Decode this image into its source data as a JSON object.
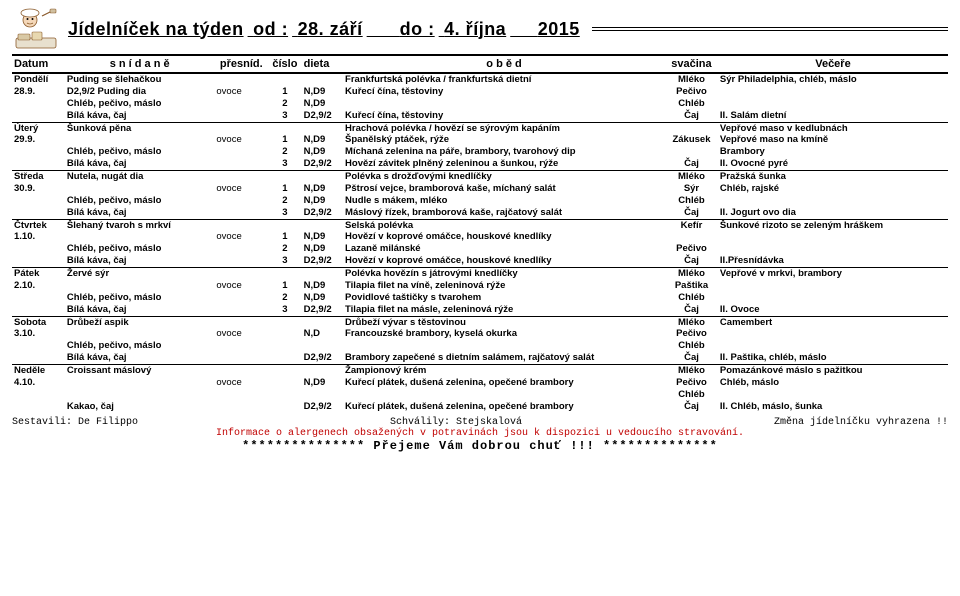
{
  "title": {
    "prefix": "Jídelníček  na  týden",
    "from_lbl": "od  :",
    "from": "28. září",
    "to_lbl": "do   :",
    "to": "4. října",
    "year": "2015"
  },
  "headers": {
    "datum": "Datum",
    "snidane": "s n í d a n ě",
    "presnid": "přesníd.",
    "cislo": "číslo",
    "dieta": "dieta",
    "obed": "o b ě d",
    "svacina": "svačina",
    "vecere": "Večeře"
  },
  "days": [
    {
      "day": "Pondělí",
      "date": "28.9.",
      "rows": [
        {
          "snid": "Puding se šlehačkou",
          "pres": "",
          "cis": "",
          "diet": "",
          "obed": "Frankfurtská polévka / frankfurtská dietní",
          "svac": "Mléko",
          "vec": "Sýr Philadelphia, chléb, máslo"
        },
        {
          "snid": "D2,9/2 Puding dia",
          "pres": "ovoce",
          "cis": "1",
          "diet": "N,D9",
          "obed": "Kuřecí čína, těstoviny",
          "svac": "Pečivo",
          "vec": ""
        },
        {
          "snid": "Chléb, pečivo, máslo",
          "pres": "",
          "cis": "2",
          "diet": "N,D9",
          "obed": "",
          "svac": "Chléb",
          "vec": ""
        },
        {
          "snid": "Bílá káva, čaj",
          "pres": "",
          "cis": "3",
          "diet": "D2,9/2",
          "obed": "Kuřecí čína, těstoviny",
          "svac": "Čaj",
          "vec": "II. Salám dietní"
        }
      ]
    },
    {
      "day": "Úterý",
      "date": "29.9.",
      "rows": [
        {
          "snid": "Šunková pěna",
          "pres": "",
          "cis": "",
          "diet": "",
          "obed": "Hrachová polévka / hovězí se sýrovým kapáním",
          "svac": "",
          "vec": "Vepřové maso v kedlubnách"
        },
        {
          "snid": "",
          "pres": "ovoce",
          "cis": "1",
          "diet": "N,D9",
          "obed": "Španělský ptáček, rýže",
          "svac": "Zákusek",
          "vec": "Vepřové maso na kmíně"
        },
        {
          "snid": "Chléb, pečivo, máslo",
          "pres": "",
          "cis": "2",
          "diet": "N,D9",
          "obed": "Míchaná zelenina na páře, brambory, tvarohový dip",
          "svac": "",
          "vec": "Brambory"
        },
        {
          "snid": "Bílá káva, čaj",
          "pres": "",
          "cis": "3",
          "diet": "D2,9/2",
          "obed": "Hovězí závitek plněný zeleninou a šunkou, rýže",
          "svac": "Čaj",
          "vec": "II. Ovocné pyré"
        }
      ]
    },
    {
      "day": "Středa",
      "date": "30.9.",
      "rows": [
        {
          "snid": "Nutela, nugát dia",
          "pres": "",
          "cis": "",
          "diet": "",
          "obed": "Polévka s drožďovými knedlíčky",
          "svac": "Mléko",
          "vec": "Pražská šunka"
        },
        {
          "snid": "",
          "pres": "ovoce",
          "cis": "1",
          "diet": "N,D9",
          "obed": "Pštrosí vejce, bramborová kaše, míchaný salát",
          "svac": "Sýr",
          "vec": "Chléb, rajské"
        },
        {
          "snid": "Chléb, pečivo, máslo",
          "pres": "",
          "cis": "2",
          "diet": "N,D9",
          "obed": "Nudle s mákem, mléko",
          "svac": "Chléb",
          "vec": ""
        },
        {
          "snid": "Bílá káva, čaj",
          "pres": "",
          "cis": "3",
          "diet": "D2,9/2",
          "obed": "Máslový řízek, bramborová kaše, rajčatový salát",
          "svac": "Čaj",
          "vec": "II. Jogurt ovo dia"
        }
      ]
    },
    {
      "day": "Čtvrtek",
      "date": "1.10.",
      "rows": [
        {
          "snid": "Šlehaný tvaroh s mrkví",
          "pres": "",
          "cis": "",
          "diet": "",
          "obed": "Selská polévka",
          "svac": "Kefír",
          "vec": "Šunkové rizoto se zeleným hráškem"
        },
        {
          "snid": "",
          "pres": "ovoce",
          "cis": "1",
          "diet": "N,D9",
          "obed": "Hovězí v koprové omáčce, houskové knedlíky",
          "svac": "",
          "vec": ""
        },
        {
          "snid": "Chléb, pečivo, máslo",
          "pres": "",
          "cis": "2",
          "diet": "N,D9",
          "obed": "Lazaně milánské",
          "svac": "Pečivo",
          "vec": ""
        },
        {
          "snid": "Bílá káva, čaj",
          "pres": "",
          "cis": "3",
          "diet": "D2,9/2",
          "obed": "Hovězí v koprové omáčce, houskové knedlíky",
          "svac": "Čaj",
          "vec": "II.Přesnídávka"
        }
      ]
    },
    {
      "day": "Pátek",
      "date": "2.10.",
      "rows": [
        {
          "snid": "Žervé sýr",
          "pres": "",
          "cis": "",
          "diet": "",
          "obed": "Polévka hovězín s játrovými knedlíčky",
          "svac": "Mléko",
          "vec": "Vepřové v mrkvi, brambory"
        },
        {
          "snid": "",
          "pres": "ovoce",
          "cis": "1",
          "diet": "N,D9",
          "obed": "Tilapia filet na víně, zeleninová rýže",
          "svac": "Paštika",
          "vec": ""
        },
        {
          "snid": "Chléb, pečivo, máslo",
          "pres": "",
          "cis": "2",
          "diet": "N,D9",
          "obed": "Povidlové taštičky s tvarohem",
          "svac": "Chléb",
          "vec": ""
        },
        {
          "snid": "Bílá káva, čaj",
          "pres": "",
          "cis": "3",
          "diet": "D2,9/2",
          "obed": "Tilapia filet na másle, zeleninová rýže",
          "svac": "Čaj",
          "vec": "II. Ovoce"
        }
      ]
    },
    {
      "day": "Sobota",
      "date": "3.10.",
      "rows": [
        {
          "snid": "Drůbeží aspik",
          "pres": "",
          "cis": "",
          "diet": "",
          "obed": "Drůbeží vývar s těstovinou",
          "svac": "Mléko",
          "vec": "Camembert"
        },
        {
          "snid": "",
          "pres": "ovoce",
          "cis": "",
          "diet": "N,D",
          "obed": "Francouzské brambory, kyselá okurka",
          "svac": "Pečivo",
          "vec": ""
        },
        {
          "snid": "Chléb, pečivo, máslo",
          "pres": "",
          "cis": "",
          "diet": "",
          "obed": "",
          "svac": "Chléb",
          "vec": ""
        },
        {
          "snid": "Bílá káva, čaj",
          "pres": "",
          "cis": "",
          "diet": "D2,9/2",
          "obed": "Brambory zapečené s dietním salámem, rajčatový salát",
          "svac": "Čaj",
          "vec": "II. Paštika, chléb, máslo"
        }
      ]
    },
    {
      "day": "Neděle",
      "date": "4.10.",
      "rows": [
        {
          "snid": "Croissant máslový",
          "pres": "",
          "cis": "",
          "diet": "",
          "obed": "Žampionový krém",
          "svac": "Mléko",
          "vec": "Pomazánkové máslo s pažitkou"
        },
        {
          "snid": "",
          "pres": "ovoce",
          "cis": "",
          "diet": "N,D9",
          "obed": "Kuřecí plátek, dušená zelenina, opečené brambory",
          "svac": "Pečivo",
          "vec": "Chléb, máslo"
        },
        {
          "snid": "",
          "pres": "",
          "cis": "",
          "diet": "",
          "obed": "",
          "svac": "Chléb",
          "vec": ""
        },
        {
          "snid": "Kakao, čaj",
          "pres": "",
          "cis": "",
          "diet": "D2,9/2",
          "obed": "Kuřecí plátek, dušená zelenina, opečené brambory",
          "svac": "Čaj",
          "vec": "II. Chléb, máslo, šunka"
        }
      ]
    }
  ],
  "footer": {
    "line1_a": "Sestavili: De Filippo",
    "line1_b": "Schválily:  Stejskalová",
    "line1_c": "Změna  jídelníčku  vyhrazena !!",
    "warn": "Informace o alergenech obsažených v potravinách jsou k dispozici u vedoucího stravování.",
    "wish": "*************** Přejeme Vám dobrou chuť !!! **************"
  }
}
